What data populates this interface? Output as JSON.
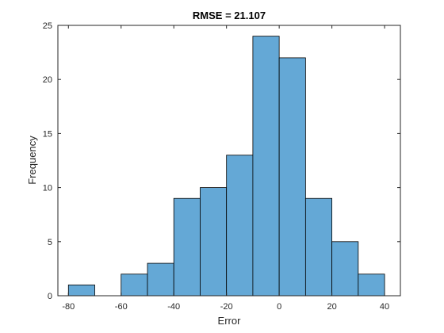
{
  "chart_data": {
    "type": "bar",
    "title": "RMSE = 21.107",
    "xlabel": "Error",
    "ylabel": "Frequency",
    "bin_edges": [
      -80,
      -70,
      -60,
      -50,
      -40,
      -30,
      -20,
      -10,
      0,
      10,
      20,
      30,
      40
    ],
    "counts": [
      1,
      0,
      2,
      3,
      9,
      10,
      13,
      24,
      22,
      9,
      5,
      2
    ],
    "xlim": [
      -84,
      46
    ],
    "ylim": [
      0,
      25
    ],
    "xticks": [
      -80,
      -60,
      -40,
      -20,
      0,
      20,
      40
    ],
    "yticks": [
      0,
      5,
      10,
      15,
      20,
      25
    ],
    "grid": false,
    "colors": {
      "bar_fill": "#64a8d6",
      "bar_edge": "#000000",
      "axis": "#262626"
    }
  }
}
